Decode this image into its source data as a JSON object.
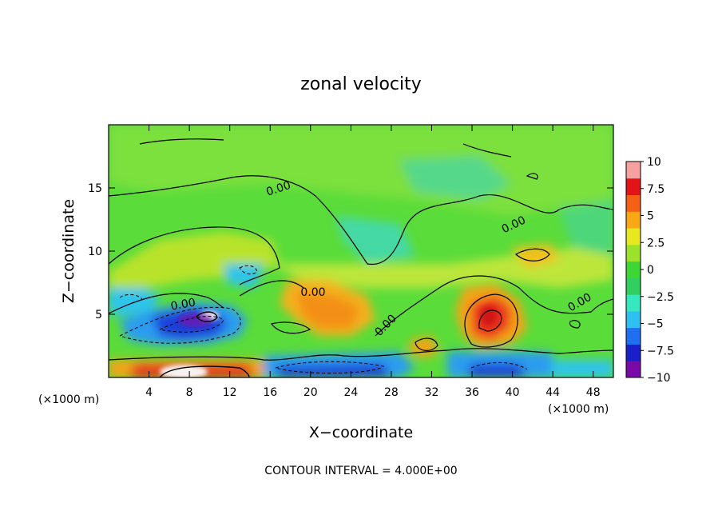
{
  "chart_data": {
    "type": "heatmap",
    "title": "zonal velocity",
    "xlabel": "X−coordinate",
    "ylabel": "Z−coordinate",
    "x_unit_left": "(×1000 m)",
    "x_unit_right": "(×1000 m)",
    "footer": "CONTOUR INTERVAL = 4.000E+00",
    "xlim": [
      0,
      50
    ],
    "ylim": [
      0,
      20
    ],
    "x_ticks": [
      "4",
      "8",
      "12",
      "16",
      "20",
      "24",
      "28",
      "32",
      "36",
      "40",
      "44",
      "48"
    ],
    "x_tick_values": [
      4,
      8,
      12,
      16,
      20,
      24,
      28,
      32,
      36,
      40,
      44,
      48
    ],
    "y_ticks": [
      "5",
      "10",
      "15"
    ],
    "y_tick_values": [
      5,
      10,
      15
    ],
    "colorbar": {
      "min": -10,
      "max": 10,
      "labels": [
        "10",
        "7.5",
        "5",
        "2.5",
        "0",
        "−2.5",
        "−5",
        "−7.5",
        "−10"
      ],
      "label_values": [
        10,
        7.5,
        5,
        2.5,
        0,
        -2.5,
        -5,
        -7.5,
        -10
      ],
      "colors": [
        "#7a0aa8",
        "#1a1fc9",
        "#1f6ff0",
        "#2ec0ee",
        "#36e8c0",
        "#30d060",
        "#3ed635",
        "#9be22a",
        "#e8e820",
        "#f7a812",
        "#f56016",
        "#e21418",
        "#f7a0a0"
      ]
    },
    "contour_interval": 4,
    "contour_labels": [
      "0.00",
      "0.00",
      "0.00",
      "0.00",
      "0.00",
      "0.00"
    ],
    "features": [
      {
        "x": 10,
        "z": 5.2,
        "value": -10
      },
      {
        "x": 9,
        "z": 0.4,
        "value": 10
      },
      {
        "x": 38,
        "z": 4.8,
        "value": 8
      },
      {
        "x": 22,
        "z": 6,
        "value": 5
      },
      {
        "x": 30,
        "z": 2.5,
        "value": 4
      },
      {
        "x": 19,
        "z": 0.5,
        "value": -8
      },
      {
        "x": 26,
        "z": 0.5,
        "value": -7
      },
      {
        "x": 36,
        "z": 0.6,
        "value": -8
      },
      {
        "x": 7,
        "z": 4,
        "value": -6
      }
    ]
  }
}
